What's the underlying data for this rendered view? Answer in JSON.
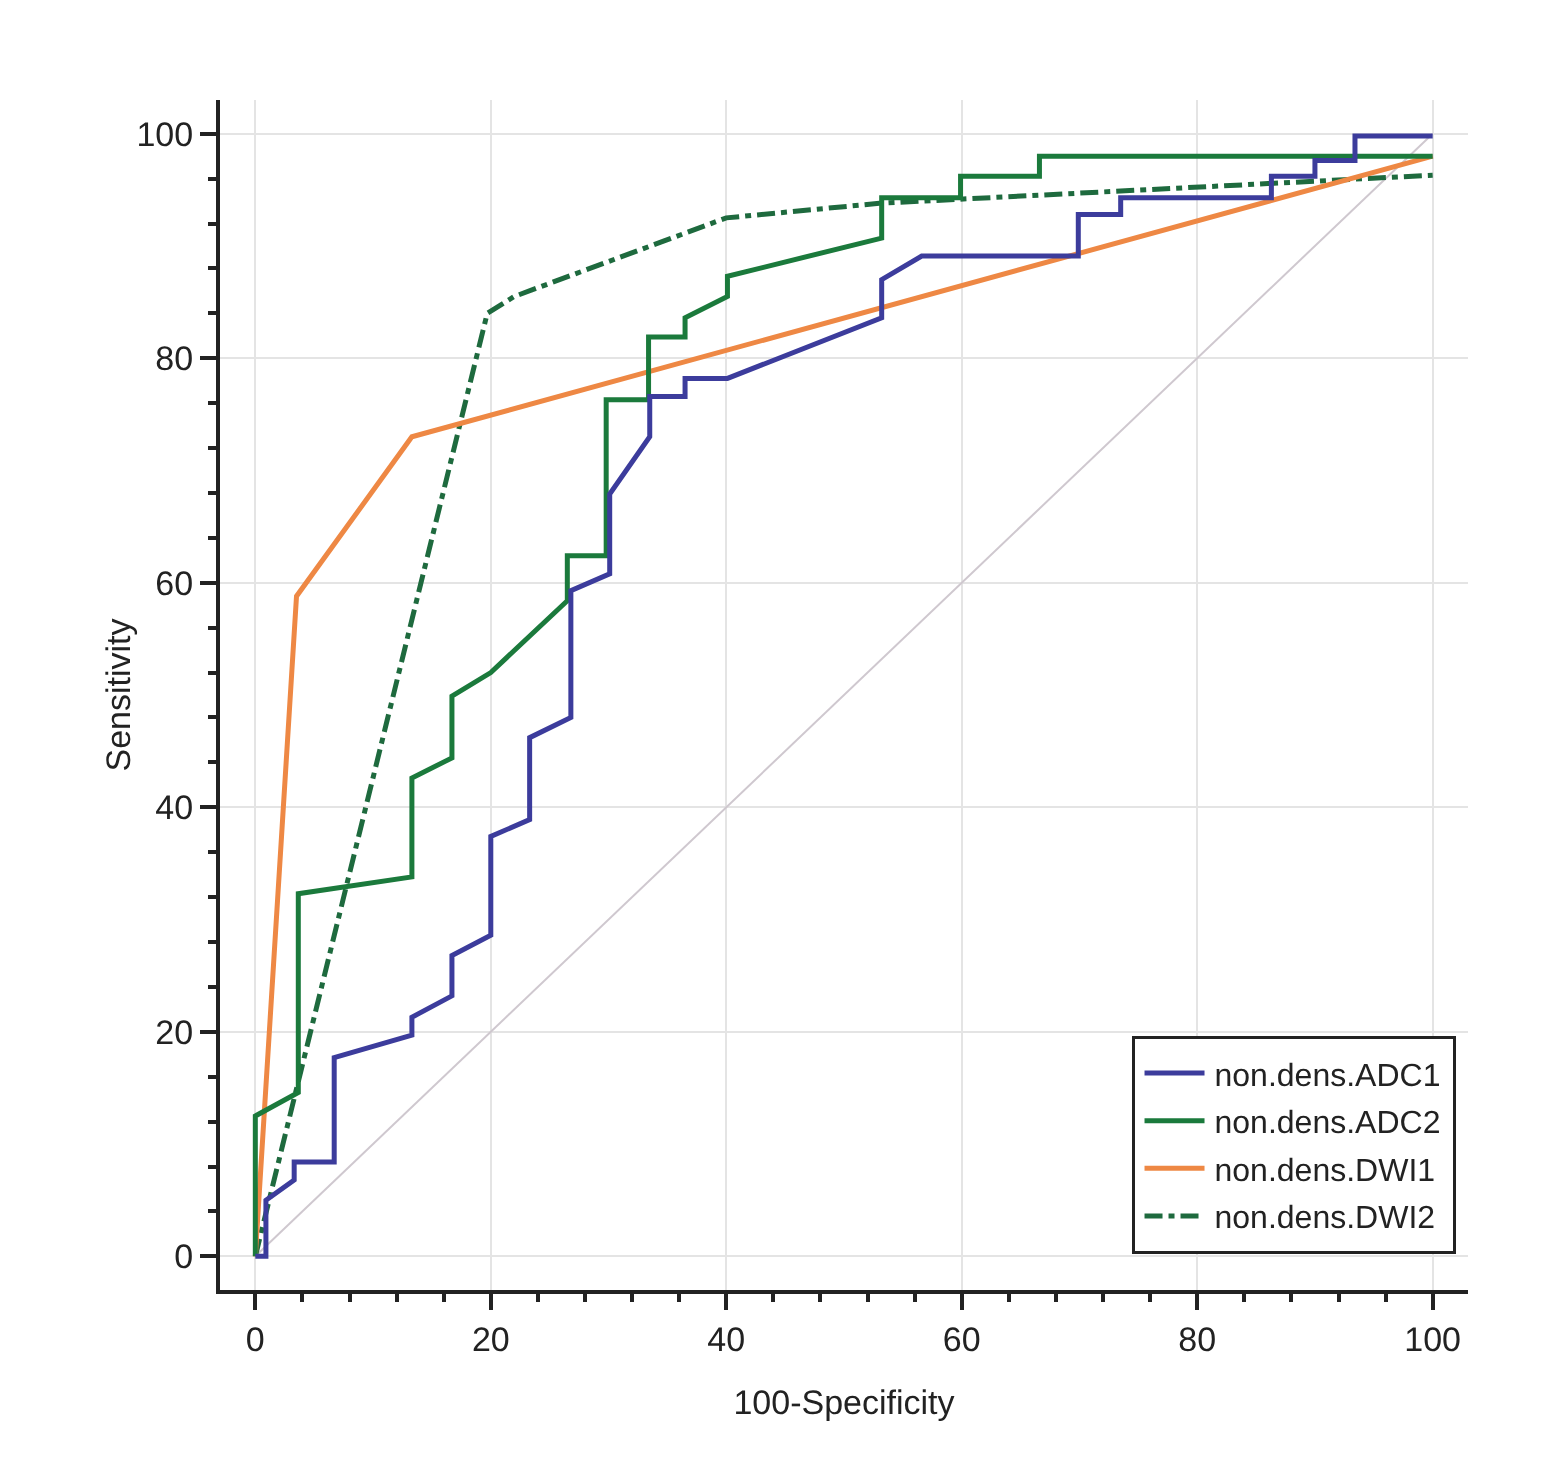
{
  "chart_data": {
    "type": "line",
    "xlabel": "100-Specificity",
    "ylabel": "Sensitivity",
    "xlim": [
      -3,
      103
    ],
    "ylim": [
      -3,
      103
    ],
    "xticks": [
      0,
      20,
      40,
      60,
      80,
      100
    ],
    "yticks": [
      0,
      20,
      40,
      60,
      80,
      100
    ],
    "grid": true,
    "legend": "bottom right",
    "marker": "none",
    "series": [
      {
        "name": "non.dens.ADC1",
        "color": "#3c3c9c",
        "line_style": "solid",
        "x": [
          0,
          0.9,
          0.9,
          3.3,
          3.3,
          6.7,
          6.7,
          13.3,
          13.3,
          16.7,
          16.7,
          20,
          20,
          23.3,
          23.3,
          26.8,
          26.8,
          30.1,
          30.1,
          33.5,
          33.5,
          36.5,
          36.5,
          40.1,
          53.2,
          53.2,
          56.6,
          69.9,
          69.9,
          73.5,
          73.5,
          86.3,
          86.3,
          90,
          90,
          93.4,
          93.4,
          100
        ],
        "values": [
          0,
          0,
          5,
          6.8,
          8.4,
          8.4,
          17.7,
          19.7,
          21.3,
          23.2,
          26.8,
          28.6,
          37.4,
          38.9,
          46.2,
          48,
          59.3,
          60.8,
          67.9,
          73,
          76.6,
          76.6,
          78.2,
          78.2,
          83.6,
          87,
          89.1,
          89.1,
          92.8,
          92.8,
          94.3,
          94.3,
          96.2,
          96.2,
          97.6,
          97.6,
          99.8,
          99.8
        ]
      },
      {
        "name": "non.dens.ADC2",
        "color": "#1b7a3c",
        "line_style": "solid",
        "x": [
          0,
          0,
          3.65,
          3.65,
          13.3,
          13.3,
          16.7,
          16.7,
          20,
          26.5,
          26.5,
          29.8,
          29.8,
          33.4,
          33.4,
          36.5,
          36.5,
          40.1,
          40.1,
          53.2,
          53.2,
          59.9,
          59.9,
          66.6,
          66.6,
          100
        ],
        "values": [
          0,
          12.5,
          14.6,
          32.3,
          33.8,
          42.6,
          44.4,
          49.9,
          52,
          58.4,
          62.4,
          62.4,
          76.3,
          76.3,
          81.9,
          81.9,
          83.6,
          85.5,
          87.3,
          90.7,
          94.3,
          94.3,
          96.2,
          96.2,
          98,
          98
        ]
      },
      {
        "name": "non.dens.DWI1",
        "color": "#ee8844",
        "line_style": "solid",
        "x": [
          0,
          3.5,
          13.3,
          100
        ],
        "values": [
          0,
          58.8,
          73,
          98
        ]
      },
      {
        "name": "non.dens.DWI2",
        "color": "#1e6a3e",
        "line_style": "dashdot",
        "x": [
          0,
          19.7,
          22,
          40,
          53,
          100
        ],
        "values": [
          0,
          84,
          85.5,
          92.5,
          93.8,
          96.3
        ]
      },
      {
        "color": "#cfc8cf",
        "line_style": "solid",
        "x": [
          0,
          100
        ],
        "values": [
          0,
          100
        ]
      }
    ]
  }
}
